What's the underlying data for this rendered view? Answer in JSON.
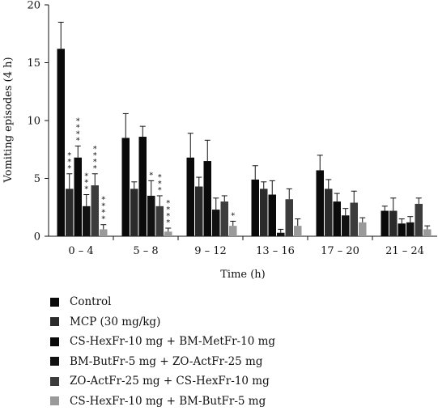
{
  "chart_data": {
    "type": "bar",
    "title": "",
    "xlabel": "Time (h)",
    "ylabel": "Vomiting episodes (4 h)",
    "ylim": [
      0,
      20
    ],
    "yticks": [
      "0",
      "5",
      "10",
      "15",
      "20"
    ],
    "grid": false,
    "legend_position": "bottom",
    "categories": [
      "0 – 4",
      "5 – 8",
      "9 – 12",
      "13 – 16",
      "17 – 20",
      "21 – 24"
    ],
    "series": [
      {
        "name": "Control",
        "color": "#0a0a0a",
        "values": [
          16.2,
          8.5,
          6.8,
          4.9,
          5.7,
          2.2
        ],
        "errors": [
          2.3,
          2.1,
          2.1,
          1.2,
          1.3,
          0.4
        ],
        "stars": [
          "",
          "",
          "",
          "",
          "",
          ""
        ]
      },
      {
        "name": "MCP (30 mg/kg)",
        "color": "#2b2b2b",
        "values": [
          4.1,
          4.1,
          4.3,
          4.1,
          4.1,
          2.2
        ],
        "errors": [
          1.3,
          0.6,
          0.8,
          0.6,
          0.8,
          1.1
        ],
        "stars": [
          "* * *",
          "",
          "",
          "",
          "",
          ""
        ]
      },
      {
        "name": "CS-HexFr-10 mg + BM-MetFr-10 mg",
        "color": "#0a0a0a",
        "values": [
          6.8,
          8.6,
          6.5,
          3.6,
          3.0,
          1.1
        ],
        "errors": [
          1.0,
          0.9,
          1.8,
          1.2,
          0.7,
          0.4
        ],
        "stars": [
          "* * * *",
          "",
          "",
          "",
          "",
          ""
        ]
      },
      {
        "name": "BM-ButFr-5 mg + ZO-ActFr-25 mg",
        "color": "#111111",
        "values": [
          2.6,
          3.5,
          2.3,
          0.3,
          1.8,
          1.2
        ],
        "errors": [
          1.0,
          1.3,
          1.0,
          0.3,
          0.6,
          0.5
        ],
        "stars": [
          "* * *",
          "*",
          "",
          "",
          "",
          ""
        ]
      },
      {
        "name": "ZO-ActFr-25 mg + CS-HexFr-10 mg",
        "color": "#3c3c3c",
        "values": [
          4.4,
          2.6,
          3.0,
          3.2,
          2.9,
          2.8
        ],
        "errors": [
          1.0,
          0.9,
          0.5,
          0.9,
          1.0,
          0.5
        ],
        "stars": [
          "* * * *",
          "* * *",
          "",
          "",
          "",
          ""
        ]
      },
      {
        "name": "CS-HexFr-10 mg + BM-ButFr-5 mg",
        "color": "#9a9a9a",
        "values": [
          0.6,
          0.4,
          0.9,
          0.9,
          1.2,
          0.6
        ],
        "errors": [
          0.4,
          0.3,
          0.4,
          0.6,
          0.4,
          0.3
        ],
        "stars": [
          "* * * *",
          "* * * *",
          "*",
          "",
          "",
          ""
        ]
      }
    ]
  }
}
